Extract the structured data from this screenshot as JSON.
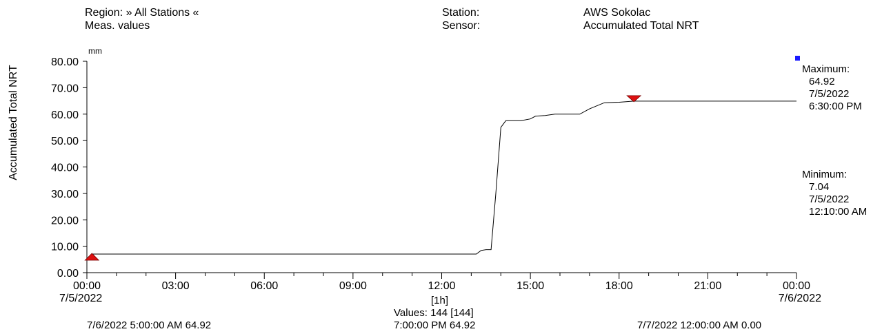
{
  "header": {
    "region_label": "Region:",
    "region_value": "» All Stations «",
    "meas_label": "Meas. values",
    "station_label": "Station:",
    "station_value": "AWS Sokolac",
    "sensor_label": "Sensor:",
    "sensor_value": "Accumulated Total NRT"
  },
  "stats": {
    "max_label": "Maximum:",
    "max_value": "64.92",
    "max_date": "7/5/2022",
    "max_time": "6:30:00 PM",
    "min_label": "Minimum:",
    "min_value": "7.04",
    "min_date": "7/5/2022",
    "min_time": "12:10:00 AM"
  },
  "footer": {
    "interval": "[1h]",
    "values_count": "Values: 144 [144]",
    "left_readout": "7/6/2022 5:00:00 AM  64.92",
    "center_readout": "7:00:00 PM  64.92",
    "right_readout": "7/7/2022 12:00:00 AM  0.00"
  },
  "colors": {
    "line": "#000000",
    "marker": "#dd1111",
    "indicator": "#1a1aff"
  },
  "chart_data": {
    "type": "line",
    "unit": "mm",
    "ylabel": "Accumulated Total NRT",
    "ylim": [
      0,
      80
    ],
    "yticks": [
      "0.00",
      "10.00",
      "20.00",
      "30.00",
      "40.00",
      "50.00",
      "60.00",
      "70.00",
      "80.00"
    ],
    "xlim_hours": [
      0,
      24
    ],
    "xticks": [
      "00:00",
      "03:00",
      "06:00",
      "09:00",
      "12:00",
      "15:00",
      "18:00",
      "21:00",
      "00:00"
    ],
    "x_start_date": "7/5/2022",
    "x_end_date": "7/6/2022",
    "series": [
      {
        "x_hours": [
          0.17,
          13.17,
          13.33,
          13.5,
          13.67,
          13.83,
          14.0,
          14.17,
          14.33,
          14.67,
          15.0,
          15.17,
          15.5,
          15.83,
          16.33,
          16.67,
          17.0,
          17.5,
          18.0,
          18.5,
          20.0,
          22.0,
          24.0
        ],
        "values": [
          7.04,
          7.04,
          8.4,
          8.7,
          8.7,
          30.0,
          55.0,
          57.5,
          57.5,
          57.5,
          58.2,
          59.2,
          59.5,
          60.0,
          60.0,
          60.0,
          62.0,
          64.3,
          64.5,
          64.92,
          64.92,
          64.92,
          64.92
        ]
      }
    ],
    "markers": [
      {
        "type": "max",
        "x_hours": 18.5,
        "value": 64.92
      },
      {
        "type": "min",
        "x_hours": 0.17,
        "value": 7.04
      }
    ]
  }
}
